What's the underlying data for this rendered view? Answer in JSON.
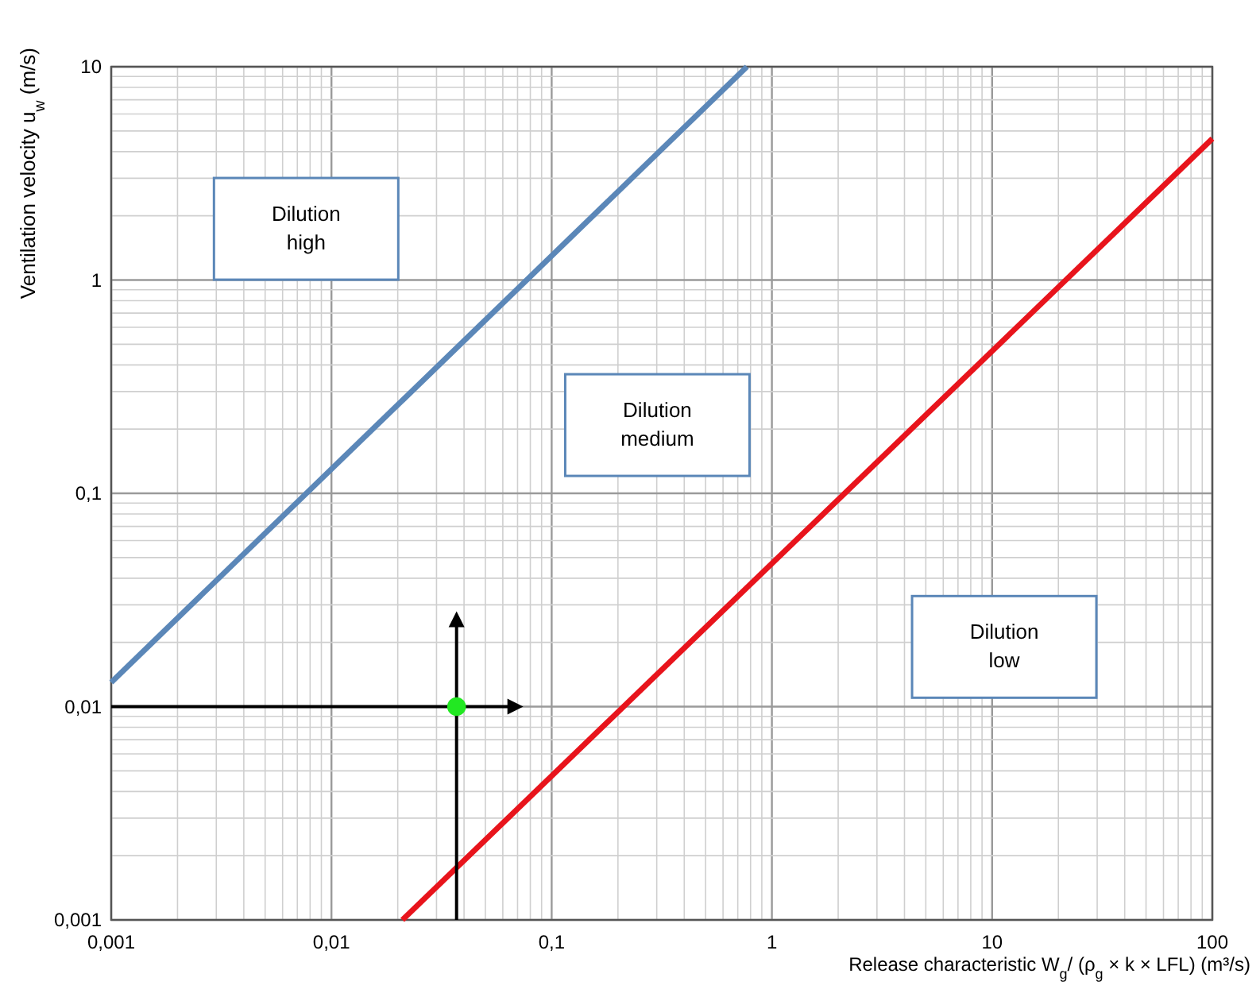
{
  "chart_data": {
    "type": "line",
    "xlabel": "Release characteristic W$_{g}$/ (ρ$_{g}$ × k × LFL)   (m³/s)",
    "ylabel": "Ventilation velocity u$_{w}$   (m/s)",
    "log": "xy",
    "grid": true,
    "xlim": [
      0.001,
      100
    ],
    "ylim": [
      0.001,
      10
    ],
    "xticks": [
      {
        "value": 0.001,
        "label": "0,001"
      },
      {
        "value": 0.002,
        "label": null
      },
      {
        "value": 0.003,
        "label": null
      },
      {
        "value": 0.004,
        "label": null
      },
      {
        "value": 0.005,
        "label": null
      },
      {
        "value": 0.006,
        "label": null
      },
      {
        "value": 0.007,
        "label": null
      },
      {
        "value": 0.008,
        "label": null
      },
      {
        "value": 0.009,
        "label": null
      },
      {
        "value": 0.01,
        "label": "0,01"
      },
      {
        "value": 0.02,
        "label": null
      },
      {
        "value": 0.03,
        "label": null
      },
      {
        "value": 0.04,
        "label": null
      },
      {
        "value": 0.05,
        "label": null
      },
      {
        "value": 0.06,
        "label": null
      },
      {
        "value": 0.07,
        "label": null
      },
      {
        "value": 0.08,
        "label": null
      },
      {
        "value": 0.09,
        "label": null
      },
      {
        "value": 0.1,
        "label": "0,1"
      },
      {
        "value": 0.2,
        "label": null
      },
      {
        "value": 0.3,
        "label": null
      },
      {
        "value": 0.4,
        "label": null
      },
      {
        "value": 0.5,
        "label": null
      },
      {
        "value": 0.6,
        "label": null
      },
      {
        "value": 0.7,
        "label": null
      },
      {
        "value": 0.8,
        "label": null
      },
      {
        "value": 0.9,
        "label": null
      },
      1,
      {
        "value": 2,
        "label": null
      },
      {
        "value": 3,
        "label": null
      },
      {
        "value": 4,
        "label": null
      },
      {
        "value": 5,
        "label": null
      },
      {
        "value": 6,
        "label": null
      },
      {
        "value": 7,
        "label": null
      },
      {
        "value": 8,
        "label": null
      },
      {
        "value": 9,
        "label": null
      },
      10,
      {
        "value": 20,
        "label": null
      },
      {
        "value": 30,
        "label": null
      },
      {
        "value": 40,
        "label": null
      },
      {
        "value": 50,
        "label": null
      },
      {
        "value": 60,
        "label": null
      },
      {
        "value": 70,
        "label": null
      },
      {
        "value": 80,
        "label": null
      },
      {
        "value": 90,
        "label": null
      },
      100
    ],
    "yticks": [
      {
        "value": 0.001,
        "label": "0,001"
      },
      {
        "value": 0.002,
        "label": null
      },
      {
        "value": 0.003,
        "label": null
      },
      {
        "value": 0.004,
        "label": null
      },
      {
        "value": 0.005,
        "label": null
      },
      {
        "value": 0.006,
        "label": null
      },
      {
        "value": 0.007,
        "label": null
      },
      {
        "value": 0.008,
        "label": null
      },
      {
        "value": 0.009,
        "label": null
      },
      {
        "value": 0.01,
        "label": "0,01"
      },
      {
        "value": 0.02,
        "label": null
      },
      {
        "value": 0.03,
        "label": null
      },
      {
        "value": 0.04,
        "label": null
      },
      {
        "value": 0.05,
        "label": null
      },
      {
        "value": 0.06,
        "label": null
      },
      {
        "value": 0.07,
        "label": null
      },
      {
        "value": 0.08,
        "label": null
      },
      {
        "value": 0.09,
        "label": null
      },
      {
        "value": 0.1,
        "label": "0,1"
      },
      {
        "value": 0.2,
        "label": null
      },
      {
        "value": 0.3,
        "label": null
      },
      {
        "value": 0.4,
        "label": null
      },
      {
        "value": 0.5,
        "label": null
      },
      {
        "value": 0.6,
        "label": null
      },
      {
        "value": 0.7,
        "label": null
      },
      {
        "value": 0.8,
        "label": null
      },
      {
        "value": 0.9,
        "label": null
      },
      1,
      {
        "value": 2,
        "label": null
      },
      {
        "value": 3,
        "label": null
      },
      {
        "value": 4,
        "label": null
      },
      {
        "value": 5,
        "label": null
      },
      {
        "value": 6,
        "label": null
      },
      {
        "value": 7,
        "label": null
      },
      {
        "value": 8,
        "label": null
      },
      {
        "value": 9,
        "label": null
      },
      10
    ],
    "series": [
      {
        "color": "#5b87b8",
        "x": [
          0.001,
          0.77
        ],
        "values": [
          0.013,
          10
        ]
      },
      {
        "color": "#e8141c",
        "x": [
          0.021,
          100
        ],
        "values": [
          0.001,
          4.6
        ]
      },
      {
        "type": "scatter",
        "marker": "circle",
        "color": "#22e822",
        "x": [
          0.037
        ],
        "values": [
          0.01
        ]
      }
    ],
    "annotations": [
      "Dilution\nhigh",
      "Dilution\nmedium",
      "Dilution\nlow"
    ]
  }
}
